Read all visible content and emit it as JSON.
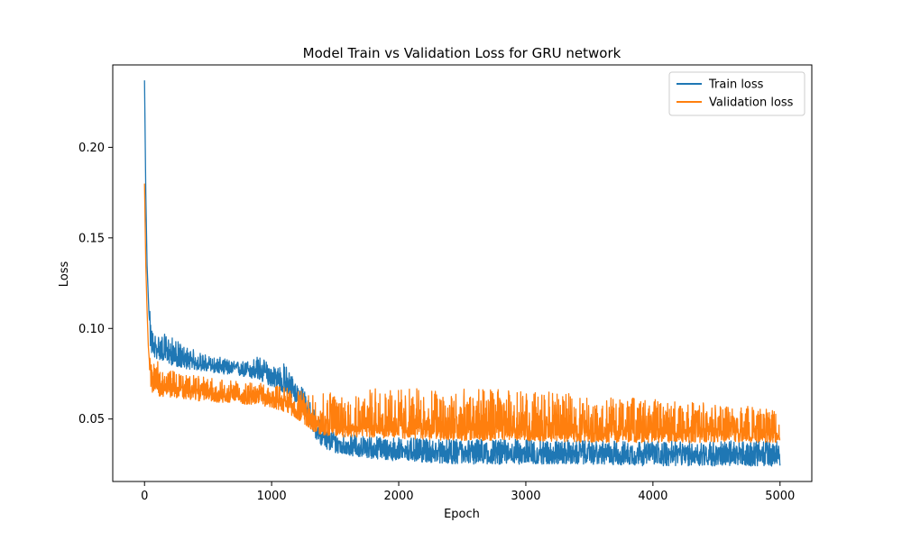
{
  "chart_data": {
    "type": "line",
    "title": "Model Train vs Validation Loss for GRU network",
    "xlabel": "Epoch",
    "ylabel": "Loss",
    "xlim": [
      -250,
      5250
    ],
    "ylim": [
      0.0155,
      0.2455
    ],
    "xticks": [
      0,
      1000,
      2000,
      3000,
      4000,
      5000
    ],
    "xtick_labels": [
      "0",
      "1000",
      "2000",
      "3000",
      "4000",
      "5000"
    ],
    "yticks": [
      0.05,
      0.1,
      0.15,
      0.2
    ],
    "ytick_labels": [
      "0.05",
      "0.10",
      "0.15",
      "0.20"
    ],
    "grid": false,
    "legend_position": "upper right",
    "series": [
      {
        "name": "Train loss",
        "color": "#1f77b4",
        "x": [
          0,
          10,
          20,
          35,
          50,
          70,
          100,
          150,
          200,
          300,
          400,
          500,
          600,
          700,
          800,
          900,
          1000,
          1100,
          1150,
          1200,
          1250,
          1300,
          1350,
          1400,
          1500,
          1600,
          1700,
          1800,
          1900,
          2000,
          2200,
          2500,
          3000,
          3500,
          4000,
          4500,
          5000
        ],
        "y_center": [
          0.237,
          0.175,
          0.135,
          0.108,
          0.094,
          0.09,
          0.089,
          0.088,
          0.086,
          0.083,
          0.081,
          0.08,
          0.079,
          0.0785,
          0.078,
          0.077,
          0.074,
          0.071,
          0.068,
          0.064,
          0.06,
          0.053,
          0.045,
          0.04,
          0.037,
          0.0355,
          0.0345,
          0.034,
          0.0335,
          0.033,
          0.0325,
          0.032,
          0.032,
          0.0315,
          0.0315,
          0.031,
          0.031
        ],
        "y_min": [
          0.237,
          0.17,
          0.128,
          0.1,
          0.086,
          0.084,
          0.083,
          0.082,
          0.08,
          0.078,
          0.077,
          0.076,
          0.075,
          0.074,
          0.073,
          0.071,
          0.068,
          0.064,
          0.062,
          0.058,
          0.052,
          0.046,
          0.039,
          0.034,
          0.031,
          0.03,
          0.029,
          0.028,
          0.027,
          0.027,
          0.026,
          0.025,
          0.025,
          0.025,
          0.024,
          0.024,
          0.024
        ],
        "y_max": [
          0.237,
          0.18,
          0.142,
          0.116,
          0.102,
          0.098,
          0.097,
          0.097,
          0.096,
          0.091,
          0.088,
          0.085,
          0.084,
          0.082,
          0.082,
          0.085,
          0.08,
          0.081,
          0.076,
          0.07,
          0.067,
          0.061,
          0.053,
          0.047,
          0.043,
          0.042,
          0.041,
          0.041,
          0.04,
          0.04,
          0.039,
          0.039,
          0.039,
          0.038,
          0.038,
          0.038,
          0.038
        ]
      },
      {
        "name": "Validation loss",
        "color": "#ff7f0e",
        "x": [
          0,
          10,
          20,
          30,
          40,
          50,
          70,
          100,
          150,
          200,
          300,
          400,
          500,
          600,
          700,
          800,
          900,
          1000,
          1100,
          1200,
          1300,
          1350,
          1400,
          1500,
          1700,
          2000,
          2500,
          3000,
          3500,
          4000,
          4500,
          5000
        ],
        "y_center": [
          0.18,
          0.135,
          0.11,
          0.09,
          0.08,
          0.074,
          0.072,
          0.07,
          0.069,
          0.068,
          0.067,
          0.066,
          0.065,
          0.064,
          0.064,
          0.063,
          0.063,
          0.062,
          0.06,
          0.056,
          0.051,
          0.049,
          0.048,
          0.047,
          0.0465,
          0.046,
          0.0455,
          0.045,
          0.045,
          0.044,
          0.044,
          0.044
        ],
        "y_min": [
          0.18,
          0.13,
          0.104,
          0.084,
          0.071,
          0.066,
          0.064,
          0.063,
          0.062,
          0.062,
          0.061,
          0.06,
          0.06,
          0.059,
          0.059,
          0.058,
          0.058,
          0.056,
          0.054,
          0.05,
          0.045,
          0.042,
          0.041,
          0.04,
          0.04,
          0.039,
          0.038,
          0.038,
          0.037,
          0.037,
          0.037,
          0.037
        ],
        "y_max": [
          0.18,
          0.14,
          0.116,
          0.098,
          0.092,
          0.085,
          0.083,
          0.082,
          0.078,
          0.077,
          0.075,
          0.074,
          0.073,
          0.072,
          0.071,
          0.07,
          0.07,
          0.069,
          0.068,
          0.066,
          0.064,
          0.064,
          0.064,
          0.066,
          0.067,
          0.067,
          0.067,
          0.066,
          0.063,
          0.061,
          0.059,
          0.058
        ]
      }
    ]
  }
}
